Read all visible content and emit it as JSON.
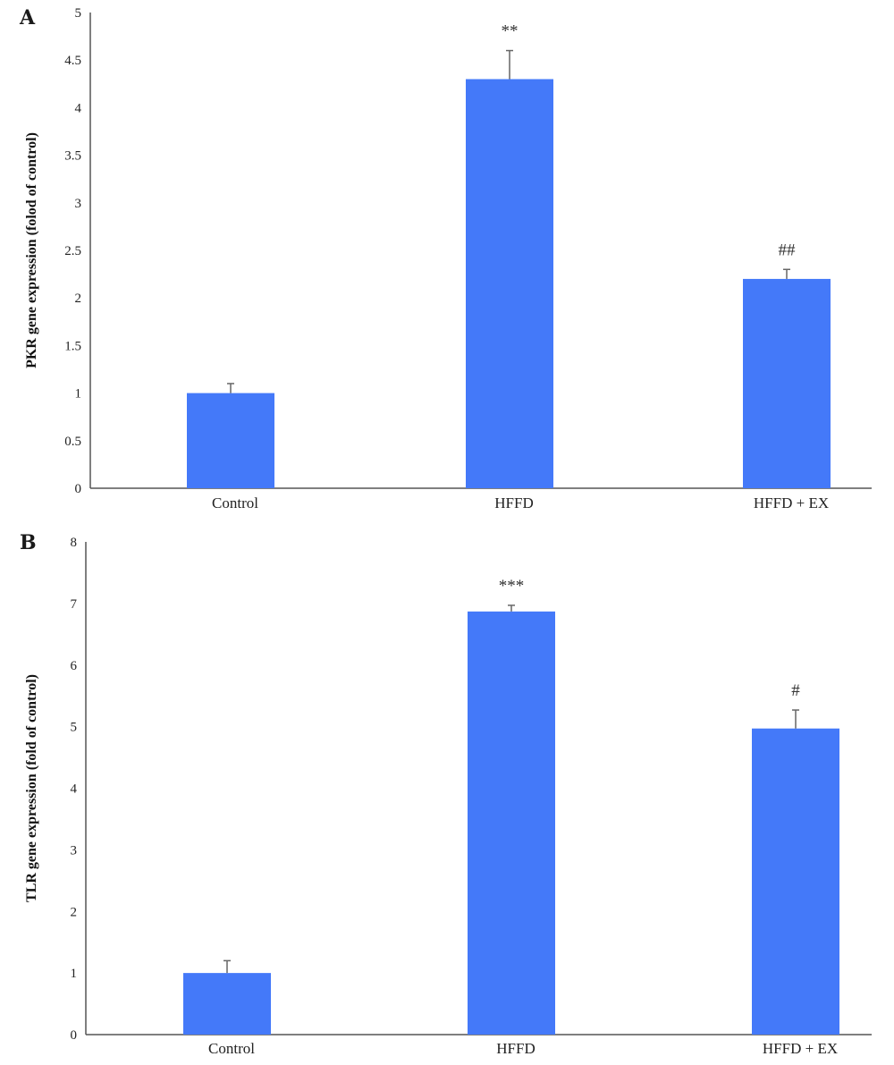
{
  "chart_data": [
    {
      "type": "bar",
      "panel": "A",
      "ylabel": "PKR gene expression (folod of control)",
      "categories": [
        "Control",
        "HFFD",
        "HFFD + EX"
      ],
      "values": [
        1.0,
        4.3,
        2.2
      ],
      "error_plus": [
        0.1,
        0.3,
        0.1
      ],
      "annotations": [
        "",
        "**",
        "##"
      ],
      "yticks": [
        "0",
        "0.5",
        "1",
        "1.5",
        "2",
        "2.5",
        "3",
        "3.5",
        "4",
        "4.5",
        "5"
      ],
      "ylim": [
        0,
        5
      ],
      "grid": false,
      "legend": "none",
      "bar_color": "#4479f9"
    },
    {
      "type": "bar",
      "panel": "B",
      "ylabel": "TLR gene expression (fold of control)",
      "categories": [
        "Control",
        "HFFD",
        "HFFD + EX"
      ],
      "values": [
        1.0,
        6.87,
        4.97
      ],
      "error_plus": [
        0.2,
        0.1,
        0.3
      ],
      "annotations": [
        "",
        "***",
        "#"
      ],
      "yticks": [
        "0",
        "1",
        "2",
        "3",
        "4",
        "5",
        "6",
        "7",
        "8"
      ],
      "ylim": [
        0,
        8
      ],
      "grid": false,
      "legend": "none",
      "bar_color": "#4479f9"
    }
  ]
}
